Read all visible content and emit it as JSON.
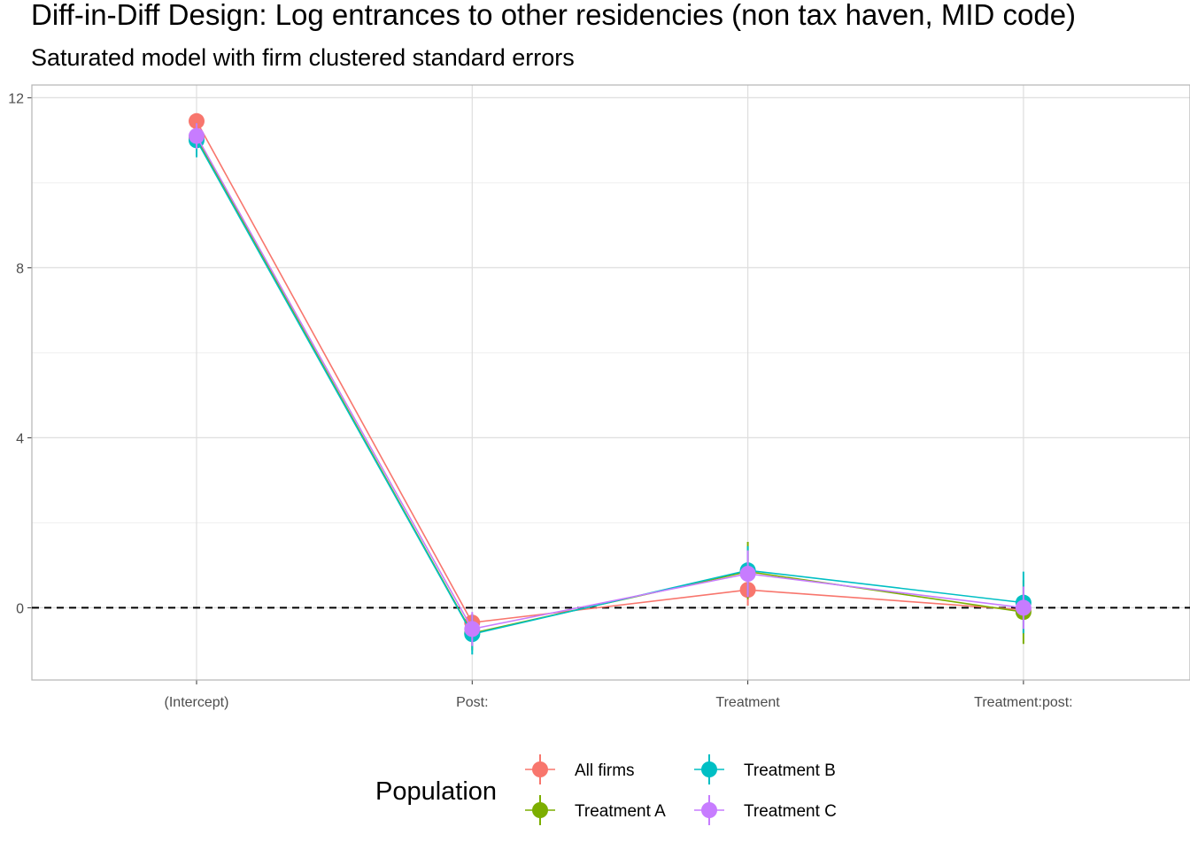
{
  "chart_data": {
    "type": "scatter",
    "title": "Diff-in-Diff Design: Log entrances to other residencies (non tax haven, MID code)",
    "subtitle": "Saturated model with firm clustered standard errors",
    "xlabel": "",
    "ylabel": "",
    "categories": [
      "(Intercept)",
      "Post:",
      "Treatment",
      "Treatment:post:"
    ],
    "y_ticks": [
      0,
      4,
      8,
      12
    ],
    "ylim": [
      -1.7,
      12.3
    ],
    "grid": true,
    "reference_line": 0,
    "legend": {
      "title": "Population",
      "placement": "bottom"
    },
    "series": [
      {
        "name": "All firms",
        "color": "#F8766D",
        "values": [
          11.45,
          -0.35,
          0.42,
          -0.05
        ],
        "ci_low": [
          11.3,
          -0.55,
          0.05,
          -0.2
        ],
        "ci_high": [
          11.6,
          -0.15,
          0.8,
          0.1
        ]
      },
      {
        "name": "Treatment A",
        "color": "#7CAE00",
        "values": [
          11.05,
          -0.6,
          0.85,
          -0.1
        ],
        "ci_low": [
          10.7,
          -1.0,
          0.2,
          -0.85
        ],
        "ci_high": [
          11.4,
          -0.2,
          1.55,
          0.65
        ]
      },
      {
        "name": "Treatment B",
        "color": "#00BFC4",
        "values": [
          11.0,
          -0.62,
          0.88,
          0.12
        ],
        "ci_low": [
          10.6,
          -1.1,
          0.3,
          -0.6
        ],
        "ci_high": [
          11.4,
          -0.15,
          1.45,
          0.85
        ]
      },
      {
        "name": "Treatment C",
        "color": "#C77CFF",
        "values": [
          11.1,
          -0.5,
          0.8,
          0.0
        ],
        "ci_low": [
          10.8,
          -0.9,
          0.25,
          -0.5
        ],
        "ci_high": [
          11.4,
          -0.1,
          1.35,
          0.5
        ]
      }
    ]
  }
}
